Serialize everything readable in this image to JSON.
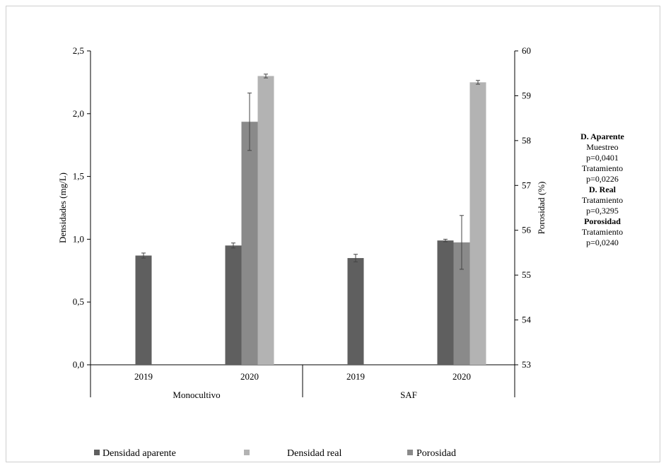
{
  "chart_data": {
    "type": "bar",
    "title": "",
    "ylabel": "Densidades (mg/L)",
    "y2label": "Porosidad (%)",
    "ylim": [
      0,
      2.5
    ],
    "y2lim": [
      53,
      60
    ],
    "yticks": [
      "0,0",
      "0,5",
      "1,0",
      "1,5",
      "2,0",
      "2,5"
    ],
    "y2ticks": [
      "53",
      "54",
      "55",
      "56",
      "57",
      "58",
      "59",
      "60"
    ],
    "groups": [
      {
        "name": "Monocultivo",
        "categories": [
          "2019",
          "2020"
        ]
      },
      {
        "name": "SAF",
        "categories": [
          "2019",
          "2020"
        ]
      }
    ],
    "categories": [
      "2019",
      "2020",
      "2019",
      "2020"
    ],
    "series": [
      {
        "name": "Densidad aparente",
        "axis": "left",
        "color": "#5f5f5f",
        "values": [
          0.87,
          0.95,
          0.85,
          0.99
        ],
        "errors": [
          0.02,
          0.02,
          0.03,
          0.01
        ]
      },
      {
        "name": "Porosidad",
        "axis": "right",
        "color": "#8a8a8a",
        "values": [
          null,
          58.42,
          null,
          55.73
        ],
        "errors": [
          null,
          0.64,
          null,
          0.6
        ]
      },
      {
        "name": "Densidad real",
        "axis": "left",
        "color": "#b3b3b3",
        "values": [
          null,
          2.3,
          null,
          2.25
        ],
        "errors": [
          null,
          0.015,
          null,
          0.015
        ]
      }
    ],
    "legend": {
      "position": "bottom",
      "items": [
        {
          "label": "Densidad aparente",
          "color": "#5f5f5f"
        },
        {
          "label": "Densidad real",
          "color": "#b3b3b3"
        },
        {
          "label": "Porosidad",
          "color": "#8a8a8a"
        }
      ]
    },
    "annotations": [
      {
        "text": "D. Aparente",
        "bold": true
      },
      {
        "text": "Muestreo",
        "bold": false
      },
      {
        "text": "p=0,0401",
        "bold": false
      },
      {
        "text": "Tratamiento",
        "bold": false
      },
      {
        "text": "p=0,0226",
        "bold": false
      },
      {
        "text": "D. Real",
        "bold": true
      },
      {
        "text": "Tratamiento",
        "bold": false
      },
      {
        "text": "p=0,3295",
        "bold": false
      },
      {
        "text": "Porosidad",
        "bold": true
      },
      {
        "text": "Tratamiento",
        "bold": false
      },
      {
        "text": "p=0,0240",
        "bold": false
      }
    ]
  }
}
